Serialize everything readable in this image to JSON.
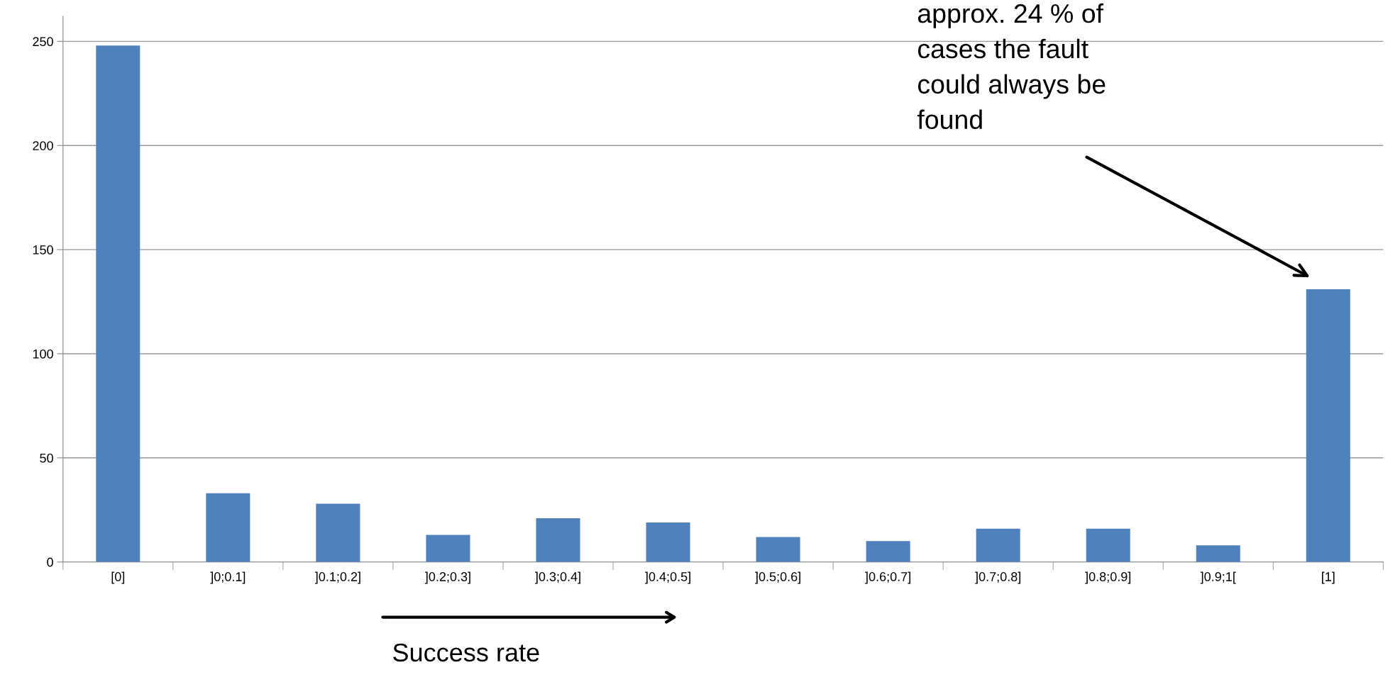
{
  "chart_data": {
    "type": "bar",
    "categories": [
      "[0]",
      "]0;0.1]",
      "]0.1;0.2]",
      "]0.2;0.3]",
      "]0.3;0.4]",
      "]0.4;0.5]",
      "]0.5;0.6]",
      "]0.6;0.7]",
      "]0.7;0.8]",
      "]0.8;0.9]",
      "]0.9;1[",
      "[1]"
    ],
    "values": [
      248,
      33,
      28,
      13,
      21,
      19,
      12,
      10,
      16,
      16,
      8,
      131
    ],
    "color": "#4f81bd",
    "xlabel": "Success rate",
    "ylim": [
      0,
      262
    ],
    "yticks": [
      0,
      50,
      100,
      150,
      200,
      250
    ],
    "grid": "y",
    "annotations": [
      "approx. 24 % of\ncases the fault\ncould always be\nfound"
    ]
  }
}
